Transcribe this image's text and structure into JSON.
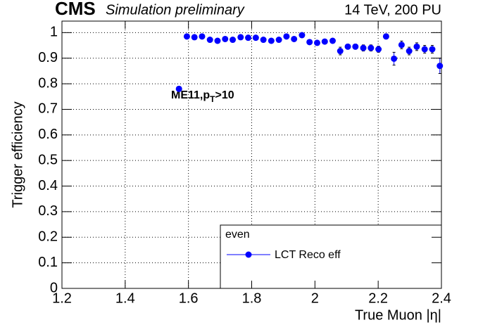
{
  "chart_data": {
    "type": "scatter",
    "title": "CMS",
    "subtitle": "Simulation preliminary",
    "right_title": "14 TeV, 200 PU",
    "x_label": "True Muon |η|",
    "y_label": "Trigger efficiency",
    "annotation": {
      "text": "ME11,p",
      "sub": "T",
      "tail": ">10"
    },
    "legend_header": "even",
    "xlim": [
      1.2,
      2.4
    ],
    "xticks": [
      1.2,
      1.4,
      1.6,
      1.8,
      2,
      2.2,
      2.4
    ],
    "ylim": [
      0,
      1.045
    ],
    "yticks": [
      0,
      0.1,
      0.2,
      0.3,
      0.4,
      0.5,
      0.6,
      0.7,
      0.8,
      0.9,
      1
    ],
    "grid": true,
    "x": [
      1.57,
      1.595,
      1.619,
      1.643,
      1.668,
      1.692,
      1.716,
      1.74,
      1.765,
      1.789,
      1.813,
      1.837,
      1.862,
      1.886,
      1.91,
      1.934,
      1.959,
      1.983,
      2.007,
      2.031,
      2.056,
      2.08,
      2.104,
      2.128,
      2.153,
      2.177,
      2.201,
      2.225,
      2.25,
      2.274,
      2.298,
      2.322,
      2.347,
      2.371,
      2.395
    ],
    "series": [
      {
        "name": "LCT Reco eff",
        "color": "#0000ff",
        "values": [
          0.78,
          0.985,
          0.982,
          0.985,
          0.972,
          0.968,
          0.975,
          0.972,
          0.982,
          0.98,
          0.98,
          0.972,
          0.968,
          0.972,
          0.985,
          0.975,
          0.99,
          0.963,
          0.96,
          0.965,
          0.968,
          0.928,
          0.945,
          0.945,
          0.94,
          0.94,
          0.935,
          0.985,
          0.898,
          0.952,
          0.928,
          0.945,
          0.935,
          0.935,
          0.87
        ],
        "errors": [
          0.01,
          0.005,
          0.005,
          0.005,
          0.005,
          0.005,
          0.005,
          0.005,
          0.005,
          0.005,
          0.005,
          0.005,
          0.005,
          0.005,
          0.005,
          0.005,
          0.005,
          0.008,
          0.008,
          0.008,
          0.008,
          0.015,
          0.01,
          0.01,
          0.012,
          0.012,
          0.012,
          0.01,
          0.025,
          0.015,
          0.015,
          0.015,
          0.015,
          0.015,
          0.03
        ]
      }
    ]
  }
}
